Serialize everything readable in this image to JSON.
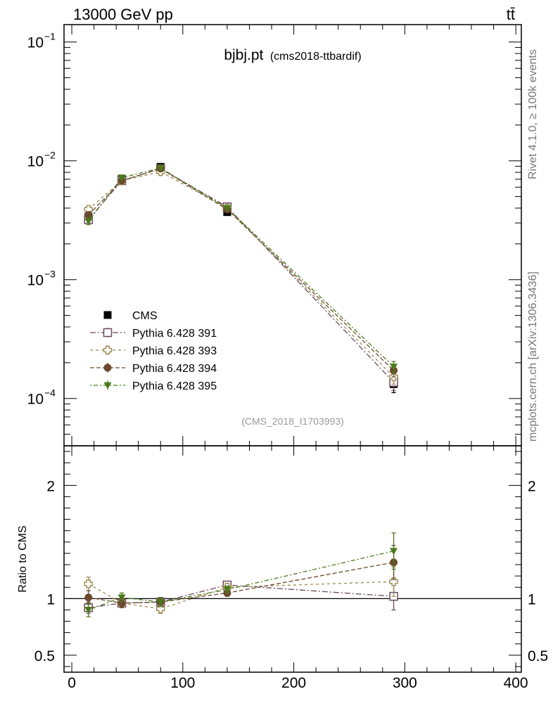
{
  "header": {
    "energy": "13000 GeV pp",
    "process": "tt̄"
  },
  "title": {
    "main": "bjbj.pt",
    "sub": "(cms2018-ttbardif)"
  },
  "side_labels": {
    "rivet": "Rivet 4.1.0, ≥ 100k events",
    "mcplots": "mcplots.cern.ch [arXiv:1306.3436]"
  },
  "analysis_id": "(CMS_2018_I1703993)",
  "colors": {
    "cms": "#000000",
    "p391": "#6b4a5e",
    "p393": "#9a8a50",
    "p394": "#6b4a2e",
    "p395": "#4a7a1a"
  },
  "chart_data": [
    {
      "type": "scatter",
      "panel": "main",
      "yscale": "log",
      "xlim": [
        -7,
        405
      ],
      "ylim": [
        4e-05,
        0.14
      ],
      "y_ticks": [
        {
          "value": 0.1,
          "label_base": "10",
          "label_exp": "−1"
        },
        {
          "value": 0.01,
          "label_base": "10",
          "label_exp": "−2"
        },
        {
          "value": 0.001,
          "label_base": "10",
          "label_exp": "−3"
        },
        {
          "value": 0.0001,
          "label_base": "10",
          "label_exp": "−4"
        }
      ],
      "legend_position": "lower-left",
      "x": [
        15,
        45,
        80,
        140,
        290
      ],
      "series": [
        {
          "name": "CMS",
          "key": "cms",
          "marker": "square-filled",
          "values": [
            0.0034,
            0.0071,
            0.0089,
            0.0037,
            0.000132
          ],
          "yerr": [
            0.0003,
            0.0004,
            0.0004,
            0.0002,
            2e-05
          ]
        },
        {
          "name": "Pythia 6.428 391",
          "key": "p391",
          "marker": "square-open",
          "values": [
            0.0032,
            0.0068,
            0.0086,
            0.0041,
            0.000137
          ],
          "yerr": [
            0.0002,
            0.0002,
            0.0002,
            0.0001,
            2e-05
          ]
        },
        {
          "name": "Pythia 6.428 393",
          "key": "p393",
          "marker": "cross-open",
          "values": [
            0.0039,
            0.0068,
            0.0081,
            0.004,
            0.000152
          ],
          "yerr": [
            0.0002,
            0.0002,
            0.0002,
            0.0001,
            2e-05
          ]
        },
        {
          "name": "Pythia 6.428 394",
          "key": "p394",
          "marker": "circle-filled",
          "values": [
            0.0035,
            0.0068,
            0.0086,
            0.0039,
            0.000172
          ],
          "yerr": [
            0.0002,
            0.0002,
            0.0002,
            0.0001,
            2e-05
          ]
        },
        {
          "name": "Pythia 6.428 395",
          "key": "p395",
          "marker": "triangle-down-filled",
          "values": [
            0.0031,
            0.0072,
            0.0087,
            0.004,
            0.000185
          ],
          "yerr": [
            0.0002,
            0.0002,
            0.0002,
            0.0001,
            2e-05
          ]
        }
      ]
    },
    {
      "type": "scatter",
      "panel": "ratio",
      "ylabel": "Ratio to CMS",
      "xlim": [
        -7,
        405
      ],
      "ylim": [
        0.35,
        2.35
      ],
      "y_ticks": [
        {
          "value": 0.5,
          "label": "0.5"
        },
        {
          "value": 1,
          "label": "1"
        },
        {
          "value": 2,
          "label": "2"
        }
      ],
      "x_ticks": [
        {
          "value": 0,
          "label": "0"
        },
        {
          "value": 100,
          "label": "100"
        },
        {
          "value": 200,
          "label": "200"
        },
        {
          "value": 300,
          "label": "300"
        },
        {
          "value": 400,
          "label": "400"
        }
      ],
      "reference_line": 1,
      "x": [
        15,
        45,
        80,
        140,
        290
      ],
      "series": [
        {
          "name": "Pythia 6.428 391",
          "key": "p391",
          "marker": "square-open",
          "values": [
            0.92,
            0.96,
            0.97,
            1.12,
            1.02
          ],
          "yerr": [
            0.05,
            0.04,
            0.04,
            0.03,
            0.12
          ]
        },
        {
          "name": "Pythia 6.428 393",
          "key": "p393",
          "marker": "cross-open",
          "values": [
            1.13,
            0.96,
            0.91,
            1.1,
            1.15
          ],
          "yerr": [
            0.06,
            0.04,
            0.04,
            0.03,
            0.13
          ]
        },
        {
          "name": "Pythia 6.428 394",
          "key": "p394",
          "marker": "circle-filled",
          "values": [
            1.01,
            0.96,
            0.97,
            1.05,
            1.32
          ],
          "yerr": [
            0.06,
            0.04,
            0.04,
            0.03,
            0.15
          ]
        },
        {
          "name": "Pythia 6.428 395",
          "key": "p395",
          "marker": "triangle-down-filled",
          "values": [
            0.9,
            1.01,
            0.97,
            1.08,
            1.42
          ],
          "yerr": [
            0.06,
            0.04,
            0.04,
            0.03,
            0.16
          ]
        }
      ]
    }
  ]
}
